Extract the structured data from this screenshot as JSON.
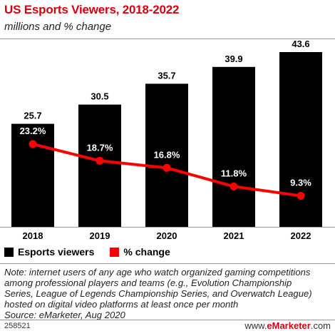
{
  "header": {
    "title": "US Esports Viewers, 2018-2022",
    "subtitle": "millions and % change"
  },
  "legend": {
    "viewers_label": "Esports viewers",
    "change_label": "% change"
  },
  "colors": {
    "title": "#d4000f",
    "bars": "#000000",
    "line": "#ff0000"
  },
  "chart_data": {
    "type": "bar",
    "categories": [
      "2018",
      "2019",
      "2020",
      "2021",
      "2022"
    ],
    "series": [
      {
        "name": "Esports viewers",
        "type": "bar",
        "values": [
          25.7,
          30.5,
          35.7,
          39.9,
          43.6
        ],
        "labels": [
          "25.7",
          "30.5",
          "35.7",
          "39.9",
          "43.6"
        ]
      },
      {
        "name": "% change",
        "type": "line",
        "values": [
          23.2,
          18.7,
          16.8,
          11.8,
          9.3
        ],
        "labels": [
          "23.2%",
          "18.7%",
          "16.8%",
          "11.8%",
          "9.3%"
        ]
      }
    ],
    "ylim": [
      0,
      43.6
    ],
    "grid": false,
    "legend_position": "bottom-left"
  },
  "note": {
    "lines": [
      "Note: internet users of any age who watch organized gaming competitions",
      "among professional players and teams (e.g., Evolution Championship",
      "Series, League of Legends Championship Series, and Overwatch League)",
      "hosted on digital video platforms at least once per month",
      "Source: eMarketer, Aug 2020"
    ]
  },
  "footer": {
    "id": "258521",
    "brand_prefix": "www.",
    "brand_name": "eMarketer",
    "brand_suffix": ".com"
  }
}
